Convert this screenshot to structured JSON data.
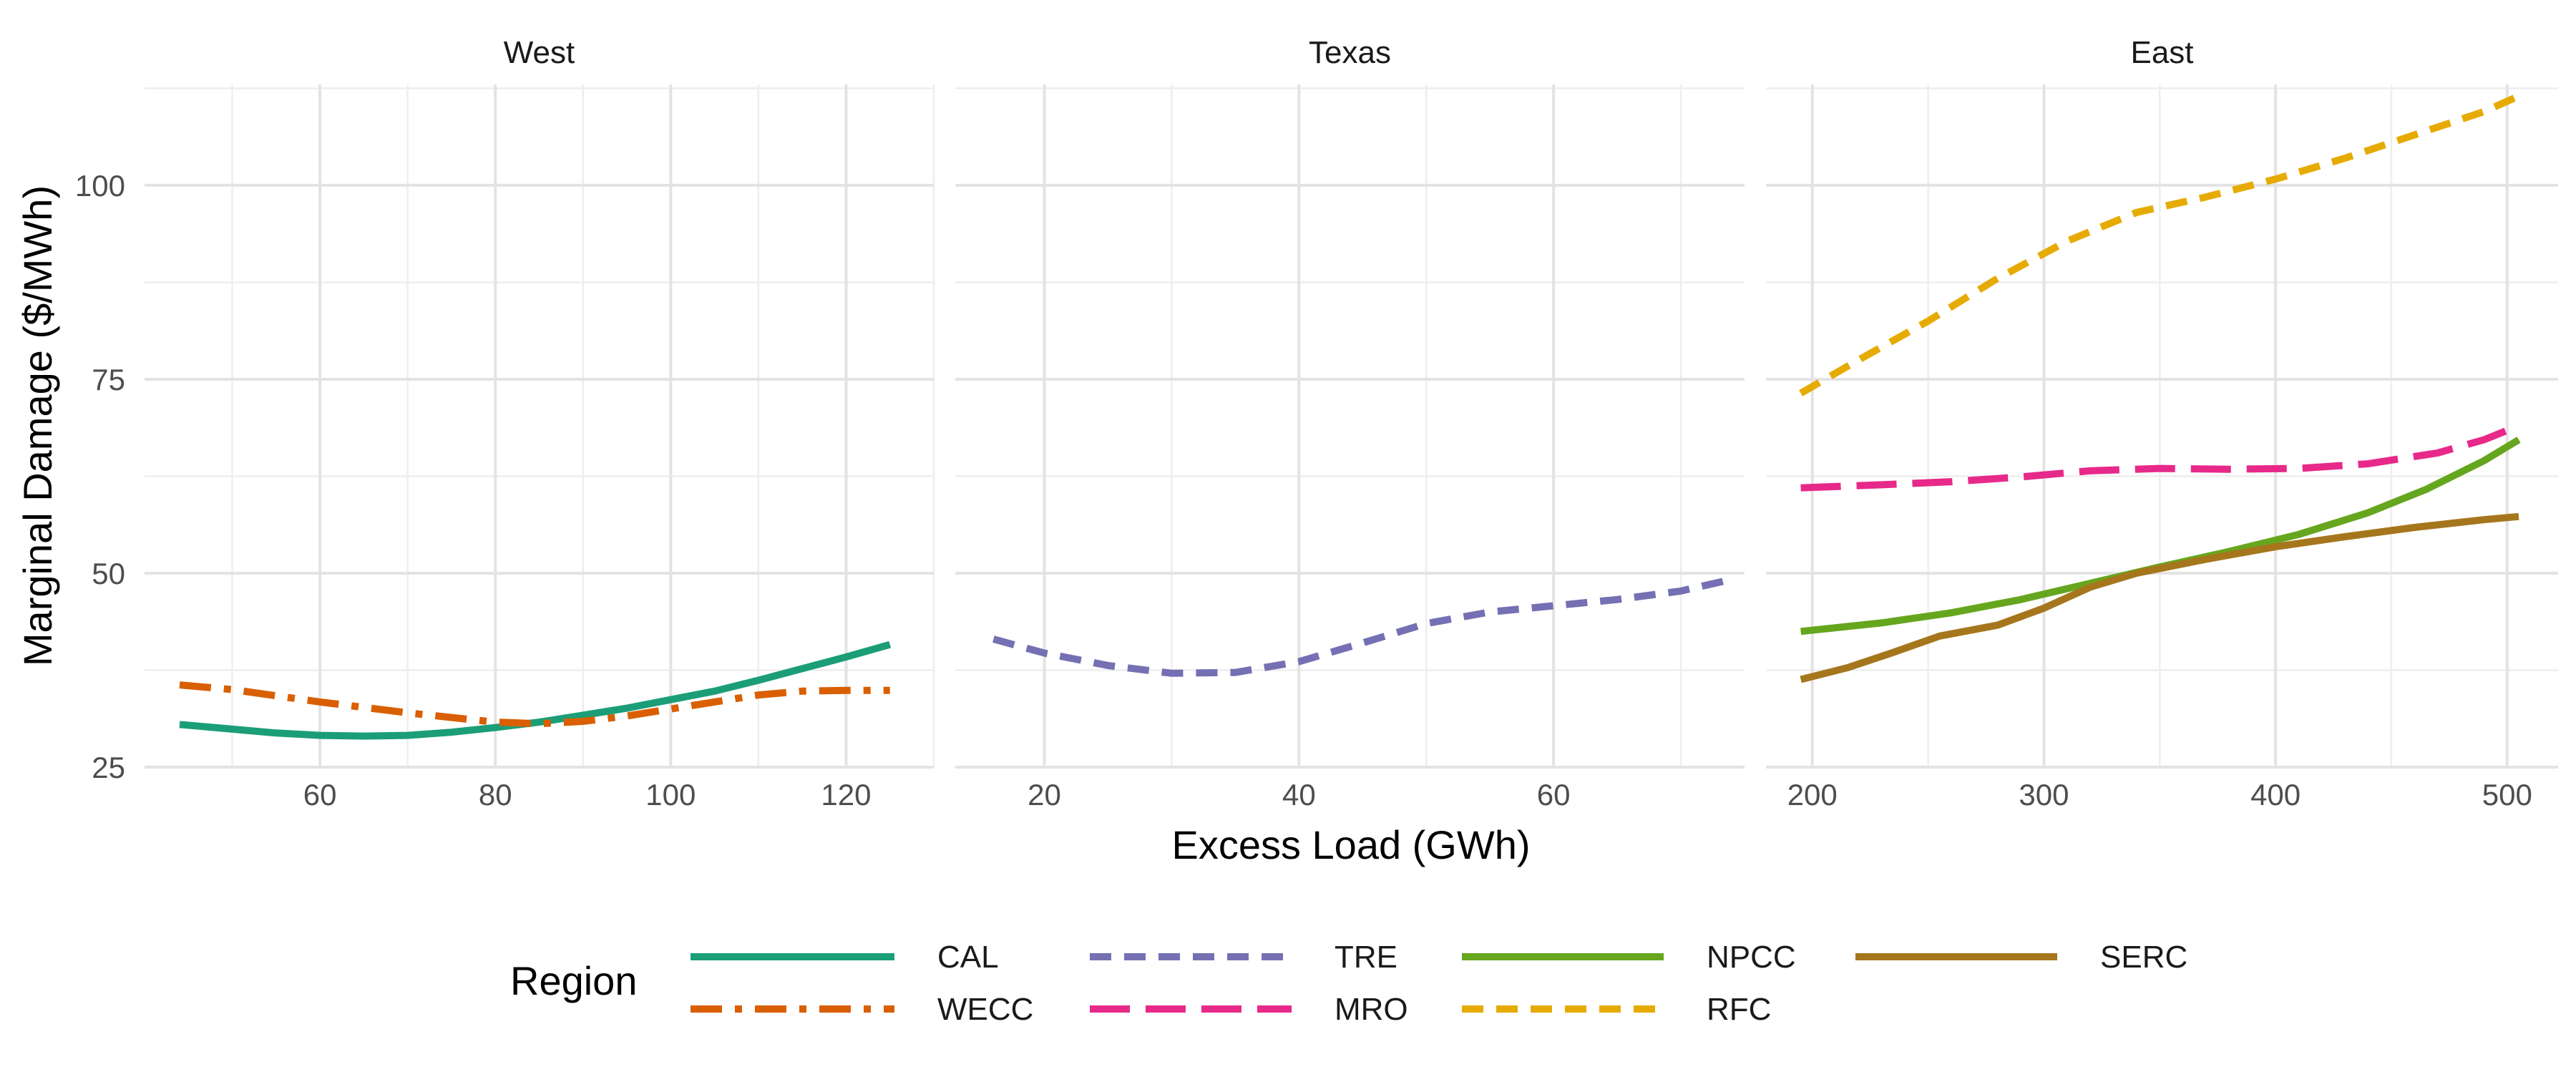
{
  "chart_data": {
    "type": "line",
    "ylabel": "Marginal Damage ($/MWh)",
    "xlabel": "Excess Load (GWh)",
    "ylim": [
      25,
      113
    ],
    "yticks": [
      25,
      50,
      75,
      100
    ],
    "grid": true,
    "legend": {
      "title": "Region",
      "position": "bottom",
      "items": [
        {
          "name": "CAL",
          "color": "#1b9e77",
          "dash": "solid"
        },
        {
          "name": "WECC",
          "color": "#d95f02",
          "dash": "dashdot"
        },
        {
          "name": "TRE",
          "color": "#7570b3",
          "dash": "dashed"
        },
        {
          "name": "MRO",
          "color": "#e7298a",
          "dash": "longdash"
        },
        {
          "name": "NPCC",
          "color": "#66a61e",
          "dash": "solid"
        },
        {
          "name": "RFC",
          "color": "#e6ab02",
          "dash": "dashed"
        },
        {
          "name": "SERC",
          "color": "#a6761d",
          "dash": "solid"
        }
      ]
    },
    "panels": [
      {
        "title": "West",
        "xlim": [
          40,
          130
        ],
        "xticks": [
          60,
          80,
          100,
          120
        ],
        "series": [
          {
            "name": "CAL",
            "x": [
              44,
              50,
              55,
              60,
              65,
              70,
              75,
              80,
              85,
              90,
              95,
              100,
              105,
              110,
              115,
              120,
              125
            ],
            "y": [
              30.5,
              29.9,
              29.4,
              29.1,
              29.0,
              29.1,
              29.5,
              30.1,
              30.8,
              31.7,
              32.6,
              33.7,
              34.8,
              36.2,
              37.7,
              39.2,
              40.8
            ]
          },
          {
            "name": "WECC",
            "x": [
              44,
              50,
              55,
              60,
              65,
              70,
              75,
              80,
              85,
              90,
              95,
              100,
              105,
              110,
              115,
              120,
              125
            ],
            "y": [
              35.6,
              35.0,
              34.2,
              33.4,
              32.7,
              32.0,
              31.4,
              30.8,
              30.6,
              30.9,
              31.6,
              32.5,
              33.4,
              34.3,
              34.8,
              34.9,
              34.9
            ]
          }
        ]
      },
      {
        "title": "Texas",
        "xlim": [
          13,
          75
        ],
        "xticks": [
          20,
          40,
          60
        ],
        "series": [
          {
            "name": "TRE",
            "x": [
              16,
              20,
              25,
              30,
              35,
              40,
              45,
              50,
              55,
              60,
              65,
              70,
              74
            ],
            "y": [
              41.5,
              39.7,
              38.1,
              37.1,
              37.2,
              38.6,
              41.0,
              43.5,
              45.0,
              45.8,
              46.6,
              47.7,
              49.2
            ]
          }
        ]
      },
      {
        "title": "East",
        "xlim": [
          180,
          522
        ],
        "xticks": [
          200,
          300,
          400,
          500
        ],
        "series": [
          {
            "name": "RFC",
            "x": [
              195,
              220,
              250,
              280,
              310,
              340,
              370,
              400,
              430,
              460,
              490,
              505
            ],
            "y": [
              73.2,
              77.5,
              82.5,
              88.0,
              92.8,
              96.5,
              98.5,
              100.8,
              103.5,
              106.5,
              109.5,
              111.5
            ]
          },
          {
            "name": "MRO",
            "x": [
              195,
              230,
              260,
              290,
              320,
              350,
              380,
              410,
              440,
              470,
              490,
              505
            ],
            "y": [
              61.0,
              61.4,
              61.8,
              62.4,
              63.2,
              63.5,
              63.4,
              63.5,
              64.1,
              65.5,
              67.2,
              69.0
            ]
          },
          {
            "name": "NPCC",
            "x": [
              195,
              230,
              260,
              290,
              320,
              350,
              380,
              410,
              440,
              465,
              490,
              505
            ],
            "y": [
              42.5,
              43.6,
              44.9,
              46.6,
              48.7,
              50.8,
              52.8,
              55.0,
              57.8,
              60.8,
              64.5,
              67.2
            ]
          },
          {
            "name": "SERC",
            "x": [
              195,
              215,
              235,
              255,
              280,
              300,
              320,
              340,
              370,
              400,
              430,
              460,
              490,
              505
            ],
            "y": [
              36.3,
              37.8,
              39.8,
              41.9,
              43.3,
              45.5,
              48.2,
              50.0,
              51.8,
              53.4,
              54.7,
              55.9,
              56.9,
              57.3
            ]
          }
        ]
      }
    ]
  }
}
